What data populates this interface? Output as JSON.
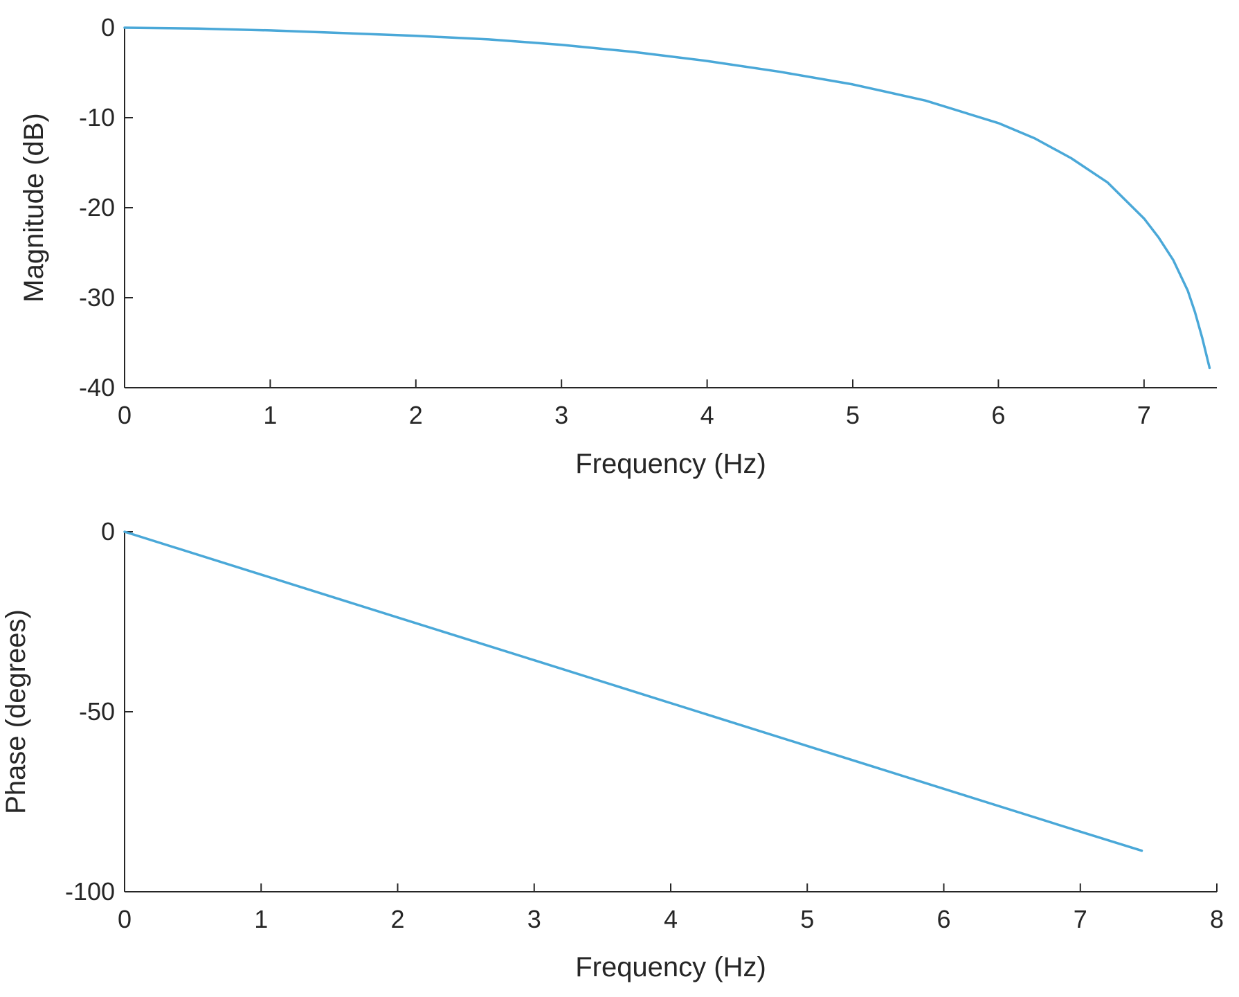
{
  "chart_data": [
    {
      "type": "line",
      "title": "",
      "xlabel": "Frequency (Hz)",
      "ylabel": "Magnitude (dB)",
      "xlim": [
        0,
        7.5
      ],
      "ylim": [
        -40,
        0
      ],
      "xticks": [
        0,
        1,
        2,
        3,
        4,
        5,
        6,
        7
      ],
      "yticks": [
        0,
        -10,
        -20,
        -30,
        -40
      ],
      "xtick_labels": [
        "0",
        "1",
        "2",
        "3",
        "4",
        "5",
        "6",
        "7"
      ],
      "ytick_labels": [
        "0",
        "-10",
        "-20",
        "-30",
        "-40"
      ],
      "grid": false,
      "line_color": "#4aa8d8",
      "series": [
        {
          "x": [
            0,
            0.5,
            1,
            1.5,
            2,
            2.5,
            3,
            3.5,
            4,
            4.5,
            5,
            5.5,
            6,
            6.25,
            6.5,
            6.75,
            7,
            7.1,
            7.2,
            7.3,
            7.35,
            7.4,
            7.45
          ],
          "values": [
            0,
            -0.1,
            -0.3,
            -0.6,
            -0.9,
            -1.3,
            -1.9,
            -2.7,
            -3.7,
            -4.9,
            -6.3,
            -8.1,
            -10.6,
            -12.3,
            -14.5,
            -17.2,
            -21.2,
            -23.3,
            -25.8,
            -29.2,
            -31.6,
            -34.5,
            -37.8
          ]
        }
      ]
    },
    {
      "type": "line",
      "title": "",
      "xlabel": "Frequency (Hz)",
      "ylabel": "Phase (degrees)",
      "xlim": [
        0,
        8
      ],
      "ylim": [
        -100,
        0
      ],
      "xticks": [
        0,
        1,
        2,
        3,
        4,
        5,
        6,
        7,
        8
      ],
      "yticks": [
        0,
        -50,
        -100
      ],
      "xtick_labels": [
        "0",
        "1",
        "2",
        "3",
        "4",
        "5",
        "6",
        "7",
        "8"
      ],
      "ytick_labels": [
        "0",
        "-50",
        "-100"
      ],
      "grid": false,
      "line_color": "#4aa8d8",
      "series": [
        {
          "x": [
            0,
            1,
            2,
            3,
            4,
            5,
            6,
            7,
            7.45
          ],
          "values": [
            0,
            -11.9,
            -23.8,
            -35.7,
            -47.6,
            -59.5,
            -71.4,
            -83.3,
            -88.6
          ]
        }
      ]
    }
  ]
}
